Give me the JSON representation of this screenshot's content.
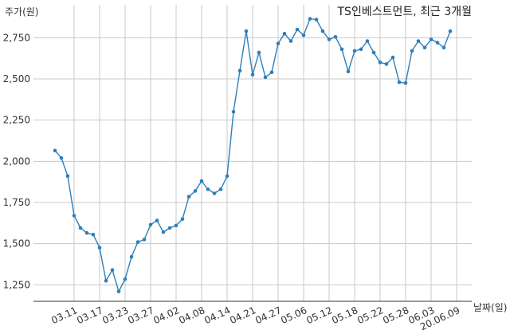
{
  "chart_data": {
    "type": "line",
    "title": "TS인베스트먼트, 최근 3개월",
    "xlabel": "날짜(일)",
    "ylabel": "주가(원)",
    "ylim": [
      1150,
      2950
    ],
    "yticks": [
      1250,
      1500,
      1750,
      2000,
      2250,
      2500,
      2750
    ],
    "ytick_labels": [
      "1,250",
      "1,500",
      "1,750",
      "2,000",
      "2,250",
      "2,500",
      "2,750"
    ],
    "xtick_labels": [
      "03.11",
      "03.17",
      "03.23",
      "03.27",
      "04.02",
      "04.08",
      "04.14",
      "04.21",
      "04.27",
      "05.06",
      "05.12",
      "05.18",
      "05.22",
      "05.28",
      "06.03",
      "20.06.09"
    ],
    "xtick_index": [
      3,
      7,
      11,
      15,
      19,
      23,
      27,
      31,
      35,
      39,
      43,
      47,
      51,
      55,
      59,
      63
    ],
    "grid": true,
    "line_color": "#2e7fb8",
    "series": [
      {
        "values": [
          2065,
          2020,
          1910,
          1670,
          1595,
          1565,
          1555,
          1475,
          1275,
          1340,
          1210,
          1285,
          1420,
          1510,
          1525,
          1615,
          1640,
          1570,
          1595,
          1610,
          1650,
          1785,
          1820,
          1880,
          1830,
          1805,
          1830,
          1910,
          2300,
          2550,
          2790,
          2525,
          2660,
          2510,
          2540,
          2715,
          2775,
          2730,
          2800,
          2765,
          2865,
          2860,
          2790,
          2740,
          2755,
          2680,
          2545,
          2670,
          2680,
          2730,
          2660,
          2600,
          2590,
          2630,
          2480,
          2475,
          2670,
          2730,
          2690,
          2740,
          2720,
          2690,
          2790
        ]
      }
    ]
  }
}
